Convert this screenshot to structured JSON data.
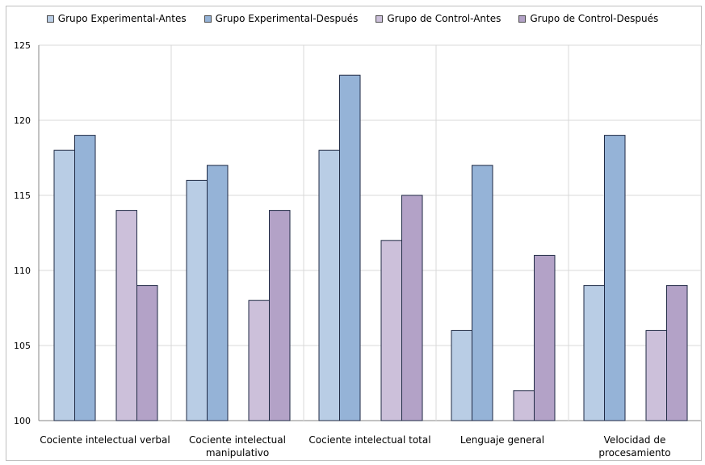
{
  "chart_data": {
    "type": "bar",
    "categories": [
      [
        "Cociente intelectual verbal"
      ],
      [
        "Cociente intelectual",
        "manipulativo"
      ],
      [
        "Cociente intelectual total"
      ],
      [
        "Lenguaje general"
      ],
      [
        "Velocidad de",
        "procesamiento"
      ]
    ],
    "series": [
      {
        "name": "Grupo Experimental-Antes",
        "color": "#b9cde5",
        "values": [
          118,
          116,
          118,
          106,
          109
        ]
      },
      {
        "name": "Grupo Experimental-Después",
        "color": "#95b3d7",
        "values": [
          119,
          117,
          123,
          117,
          119
        ]
      },
      {
        "name": "Grupo de Control-Antes",
        "color": "#ccc0da",
        "values": [
          114,
          108,
          112,
          102,
          106
        ]
      },
      {
        "name": "Grupo de Control-Después",
        "color": "#b3a2c7",
        "values": [
          109,
          114,
          115,
          111,
          109
        ]
      }
    ],
    "ylim": [
      100,
      125
    ],
    "yticks": [
      100,
      105,
      110,
      115,
      120,
      125
    ],
    "grid": true,
    "legend": "top"
  }
}
